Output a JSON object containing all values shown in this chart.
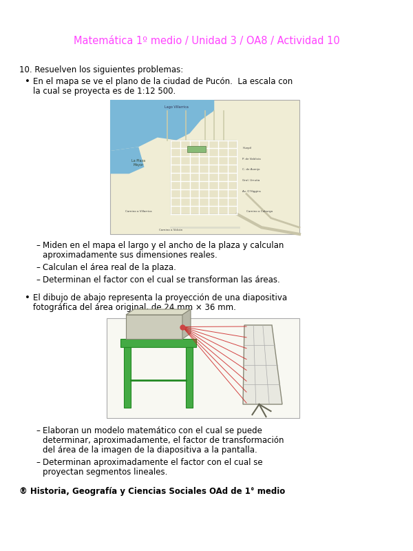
{
  "title": "Matemática 1º medio / Unidad 3 / OA8 / Actividad 10",
  "title_color": "#FF44FF",
  "bg_color": "#FFFFFF",
  "body_text_color": "#000000",
  "number_label": "10. Resuelven los siguientes problemas:",
  "bullet1_text": "En el mapa se ve el plano de la ciudad de Pucón.  La escala con\nla cual se proyecta es de 1:12 500.",
  "sub_bullets1": [
    "Miden en el mapa el largo y el ancho de la plaza y calculan\naproximadamente sus dimensiones reales.",
    "Calculan el área real de la plaza.",
    "Determinan el factor con el cual se transforman las áreas."
  ],
  "bullet2_text": "El dibujo de abajo representa la proyección de una diapositiva\nfotográfica del área original, de 24 mm × 36 mm.",
  "sub_bullets2": [
    "Elaboran un modelo matemático con el cual se puede\ndeterminar, aproximadamente, el factor de transformación\ndel área de la imagen de la diapositiva a la pantalla.",
    "Determinan aproximadamente el factor con el cual se\nproyectan segmentos lineales."
  ],
  "footer_text": "® Historia, Geografía y Ciencias Sociales OAd de 1° medio"
}
